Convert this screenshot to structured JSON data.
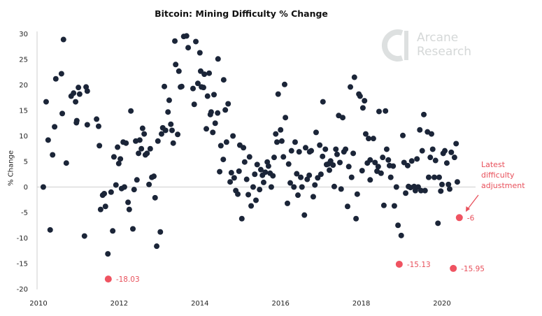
{
  "chart_data": {
    "type": "scatter",
    "title": "Bitcoin: Mining Difficulty % Change",
    "xlabel": "",
    "ylabel": "% Change",
    "xlim": [
      2010,
      2020.8
    ],
    "ylim": [
      -20,
      30
    ],
    "xticks": [
      "2010",
      "2012",
      "2014",
      "2016",
      "2018",
      "2020"
    ],
    "yticks": [
      "30",
      "25",
      "20",
      "15",
      "10",
      "5",
      "0",
      "-5",
      "-10",
      "-15",
      "-20"
    ],
    "grid": "zero line only",
    "colors": {
      "points": "#1b2538",
      "highlight": "#ef5361",
      "annotation": "#e8505b"
    },
    "points": [
      [
        2010.12,
        0.0
      ],
      [
        2010.19,
        16.7
      ],
      [
        2010.24,
        9.2
      ],
      [
        2010.29,
        -8.4
      ],
      [
        2010.35,
        6.3
      ],
      [
        2010.4,
        11.8
      ],
      [
        2010.43,
        21.2
      ],
      [
        2010.57,
        22.2
      ],
      [
        2010.59,
        14.4
      ],
      [
        2010.62,
        28.9
      ],
      [
        2010.69,
        4.7
      ],
      [
        2010.81,
        17.8
      ],
      [
        2010.87,
        18.4
      ],
      [
        2010.92,
        16.7
      ],
      [
        2010.94,
        12.6
      ],
      [
        2010.95,
        13.0
      ],
      [
        2010.99,
        19.5
      ],
      [
        2011.02,
        18.2
      ],
      [
        2011.14,
        -9.6
      ],
      [
        2011.18,
        19.6
      ],
      [
        2011.21,
        18.8
      ],
      [
        2011.21,
        12.2
      ],
      [
        2011.44,
        13.3
      ],
      [
        2011.49,
        11.9
      ],
      [
        2011.51,
        8.1
      ],
      [
        2011.54,
        -4.4
      ],
      [
        2011.59,
        -1.6
      ],
      [
        2011.63,
        -1.3
      ],
      [
        2011.66,
        -3.8
      ],
      [
        2011.72,
        -13.1
      ],
      [
        2011.87,
        5.9
      ],
      [
        2011.96,
        7.8
      ],
      [
        2011.99,
        4.6
      ],
      [
        2012.03,
        5.5
      ],
      [
        2011.92,
        0.4
      ],
      [
        2011.8,
        -1.0
      ],
      [
        2011.84,
        -8.6
      ],
      [
        2012.1,
        8.8
      ],
      [
        2012.17,
        8.6
      ],
      [
        2012.06,
        -0.3
      ],
      [
        2012.13,
        0.0
      ],
      [
        2012.22,
        -3.0
      ],
      [
        2012.25,
        -4.4
      ],
      [
        2012.29,
        14.9
      ],
      [
        2012.34,
        -8.2
      ],
      [
        2012.37,
        -0.5
      ],
      [
        2012.41,
        9.0
      ],
      [
        2012.44,
        1.4
      ],
      [
        2012.48,
        6.6
      ],
      [
        2012.51,
        9.2
      ],
      [
        2012.55,
        7.5
      ],
      [
        2012.58,
        11.5
      ],
      [
        2012.62,
        10.4
      ],
      [
        2012.65,
        6.3
      ],
      [
        2012.69,
        6.6
      ],
      [
        2012.74,
        0.5
      ],
      [
        2012.77,
        7.5
      ],
      [
        2012.81,
        1.9
      ],
      [
        2012.86,
        2.1
      ],
      [
        2012.89,
        -2.1
      ],
      [
        2012.93,
        -11.6
      ],
      [
        2012.96,
        9.0
      ],
      [
        2013.02,
        -8.8
      ],
      [
        2013.05,
        10.4
      ],
      [
        2013.08,
        11.6
      ],
      [
        2013.12,
        19.7
      ],
      [
        2013.15,
        11.1
      ],
      [
        2013.21,
        14.7
      ],
      [
        2013.24,
        17.0
      ],
      [
        2013.28,
        12.3
      ],
      [
        2013.31,
        11.1
      ],
      [
        2013.34,
        8.6
      ],
      [
        2013.38,
        28.6
      ],
      [
        2013.4,
        24.0
      ],
      [
        2013.45,
        10.3
      ],
      [
        2013.48,
        22.7
      ],
      [
        2013.52,
        19.6
      ],
      [
        2013.55,
        19.7
      ],
      [
        2013.6,
        29.5
      ],
      [
        2013.67,
        29.6
      ],
      [
        2013.71,
        27.3
      ],
      [
        2013.83,
        19.3
      ],
      [
        2013.86,
        16.2
      ],
      [
        2013.9,
        28.5
      ],
      [
        2013.95,
        20.3
      ],
      [
        2014.0,
        26.3
      ],
      [
        2014.02,
        22.7
      ],
      [
        2014.04,
        19.6
      ],
      [
        2014.09,
        19.5
      ],
      [
        2014.11,
        22.1
      ],
      [
        2014.16,
        11.4
      ],
      [
        2014.19,
        17.8
      ],
      [
        2014.23,
        22.3
      ],
      [
        2014.26,
        14.2
      ],
      [
        2014.28,
        14.7
      ],
      [
        2014.32,
        10.7
      ],
      [
        2014.35,
        18.1
      ],
      [
        2014.38,
        12.5
      ],
      [
        2014.44,
        14.5
      ],
      [
        2014.45,
        25.1
      ],
      [
        2014.49,
        3.0
      ],
      [
        2014.52,
        8.1
      ],
      [
        2014.58,
        5.4
      ],
      [
        2014.59,
        21.0
      ],
      [
        2014.63,
        15.1
      ],
      [
        2014.66,
        8.8
      ],
      [
        2014.7,
        16.3
      ],
      [
        2014.75,
        1.0
      ],
      [
        2014.78,
        2.8
      ],
      [
        2014.82,
        10.0
      ],
      [
        2014.85,
        1.8
      ],
      [
        2014.89,
        -0.7
      ],
      [
        2014.94,
        -1.4
      ],
      [
        2014.97,
        3.1
      ],
      [
        2014.99,
        8.2
      ],
      [
        2015.04,
        -6.2
      ],
      [
        2015.08,
        7.7
      ],
      [
        2015.11,
        4.9
      ],
      [
        2015.16,
        1.5
      ],
      [
        2015.2,
        -1.5
      ],
      [
        2015.23,
        5.9
      ],
      [
        2015.27,
        -3.7
      ],
      [
        2015.32,
        0.0
      ],
      [
        2015.36,
        2.5
      ],
      [
        2015.39,
        -2.6
      ],
      [
        2015.42,
        4.4
      ],
      [
        2015.48,
        -0.5
      ],
      [
        2015.51,
        3.4
      ],
      [
        2015.55,
        2.3
      ],
      [
        2015.58,
        0.9
      ],
      [
        2015.62,
        2.9
      ],
      [
        2015.67,
        4.9
      ],
      [
        2015.7,
        4.1
      ],
      [
        2015.74,
        2.7
      ],
      [
        2015.77,
        0.0
      ],
      [
        2015.81,
        2.2
      ],
      [
        2015.84,
        5.8
      ],
      [
        2015.88,
        10.4
      ],
      [
        2015.91,
        8.8
      ],
      [
        2015.94,
        18.2
      ],
      [
        2016.0,
        11.2
      ],
      [
        2016.03,
        9.0
      ],
      [
        2016.07,
        5.9
      ],
      [
        2016.1,
        20.1
      ],
      [
        2016.12,
        13.6
      ],
      [
        2016.17,
        -3.2
      ],
      [
        2016.2,
        4.5
      ],
      [
        2016.24,
        0.8
      ],
      [
        2016.27,
        7.1
      ],
      [
        2016.33,
        0.0
      ],
      [
        2016.36,
        8.8
      ],
      [
        2016.4,
        2.6
      ],
      [
        2016.43,
        -1.6
      ],
      [
        2016.46,
        6.9
      ],
      [
        2016.5,
        1.9
      ],
      [
        2016.53,
        0.0
      ],
      [
        2016.59,
        -5.5
      ],
      [
        2016.62,
        7.7
      ],
      [
        2016.66,
        1.5
      ],
      [
        2016.71,
        2.3
      ],
      [
        2016.72,
        6.9
      ],
      [
        2016.76,
        7.1
      ],
      [
        2016.81,
        -1.9
      ],
      [
        2016.85,
        0.4
      ],
      [
        2016.88,
        10.7
      ],
      [
        2016.92,
        1.8
      ],
      [
        2016.97,
        8.2
      ],
      [
        2017.0,
        2.5
      ],
      [
        2017.04,
        6.0
      ],
      [
        2017.05,
        16.7
      ],
      [
        2017.11,
        7.4
      ],
      [
        2017.14,
        4.4
      ],
      [
        2017.18,
        4.5
      ],
      [
        2017.21,
        3.3
      ],
      [
        2017.24,
        5.1
      ],
      [
        2017.3,
        4.3
      ],
      [
        2017.33,
        0.1
      ],
      [
        2017.37,
        7.4
      ],
      [
        2017.4,
        6.4
      ],
      [
        2017.44,
        14.0
      ],
      [
        2017.47,
        4.8
      ],
      [
        2017.5,
        -0.4
      ],
      [
        2017.54,
        13.6
      ],
      [
        2017.57,
        6.9
      ],
      [
        2017.61,
        7.4
      ],
      [
        2017.66,
        -3.8
      ],
      [
        2017.69,
        4.0
      ],
      [
        2017.73,
        19.6
      ],
      [
        2017.76,
        1.9
      ],
      [
        2017.8,
        6.6
      ],
      [
        2017.83,
        21.5
      ],
      [
        2017.87,
        -6.2
      ],
      [
        2017.9,
        -1.4
      ],
      [
        2017.94,
        18.2
      ],
      [
        2017.97,
        17.8
      ],
      [
        2018.02,
        3.2
      ],
      [
        2018.04,
        15.5
      ],
      [
        2018.08,
        16.9
      ],
      [
        2018.11,
        10.4
      ],
      [
        2018.15,
        4.7
      ],
      [
        2018.18,
        9.5
      ],
      [
        2018.22,
        5.3
      ],
      [
        2018.22,
        1.4
      ],
      [
        2018.3,
        9.5
      ],
      [
        2018.34,
        4.8
      ],
      [
        2018.39,
        3.1
      ],
      [
        2018.42,
        4.0
      ],
      [
        2018.44,
        14.8
      ],
      [
        2018.49,
        2.7
      ],
      [
        2018.53,
        5.8
      ],
      [
        2018.56,
        -3.6
      ],
      [
        2018.6,
        14.9
      ],
      [
        2018.63,
        7.4
      ],
      [
        2018.67,
        5.3
      ],
      [
        2018.7,
        4.2
      ],
      [
        2018.73,
        1.9
      ],
      [
        2018.79,
        4.1
      ],
      [
        2018.82,
        -3.7
      ],
      [
        2018.87,
        0.0
      ],
      [
        2018.91,
        -7.5
      ],
      [
        2018.99,
        -9.5
      ],
      [
        2019.03,
        10.1
      ],
      [
        2019.06,
        4.8
      ],
      [
        2019.1,
        -1.2
      ],
      [
        2019.15,
        4.2
      ],
      [
        2019.17,
        0.1
      ],
      [
        2019.22,
        -0.1
      ],
      [
        2019.25,
        5.1
      ],
      [
        2019.31,
        0.1
      ],
      [
        2019.34,
        -0.7
      ],
      [
        2019.38,
        5.5
      ],
      [
        2019.41,
        0.0
      ],
      [
        2019.45,
        11.2
      ],
      [
        2019.48,
        -0.7
      ],
      [
        2019.51,
        7.1
      ],
      [
        2019.55,
        14.2
      ],
      [
        2019.58,
        -0.7
      ],
      [
        2019.64,
        10.8
      ],
      [
        2019.67,
        1.9
      ],
      [
        2019.71,
        5.8
      ],
      [
        2019.74,
        10.4
      ],
      [
        2019.77,
        7.4
      ],
      [
        2019.81,
        1.9
      ],
      [
        2019.84,
        5.2
      ],
      [
        2019.9,
        -7.1
      ],
      [
        2019.93,
        1.9
      ],
      [
        2019.97,
        -0.8
      ],
      [
        2020.0,
        0.5
      ],
      [
        2020.03,
        6.6
      ],
      [
        2020.07,
        7.1
      ],
      [
        2020.12,
        4.7
      ],
      [
        2020.16,
        0.5
      ],
      [
        2020.19,
        -0.4
      ],
      [
        2020.23,
        6.8
      ],
      [
        2020.31,
        5.8
      ],
      [
        2020.35,
        8.5
      ],
      [
        2020.38,
        1.0
      ]
    ],
    "highlights": [
      {
        "x": 2011.73,
        "y": -18.03,
        "label": "-18.03"
      },
      {
        "x": 2018.94,
        "y": -15.13,
        "label": "-15.13"
      },
      {
        "x": 2020.28,
        "y": -15.95,
        "label": "-15.95"
      },
      {
        "x": 2020.43,
        "y": -6,
        "label": "-6"
      }
    ],
    "annotation": {
      "lines": [
        "Latest",
        "difficulty",
        "adjustment"
      ],
      "target": "-6"
    }
  },
  "watermark": {
    "text": [
      "Arcane",
      "Research"
    ]
  }
}
